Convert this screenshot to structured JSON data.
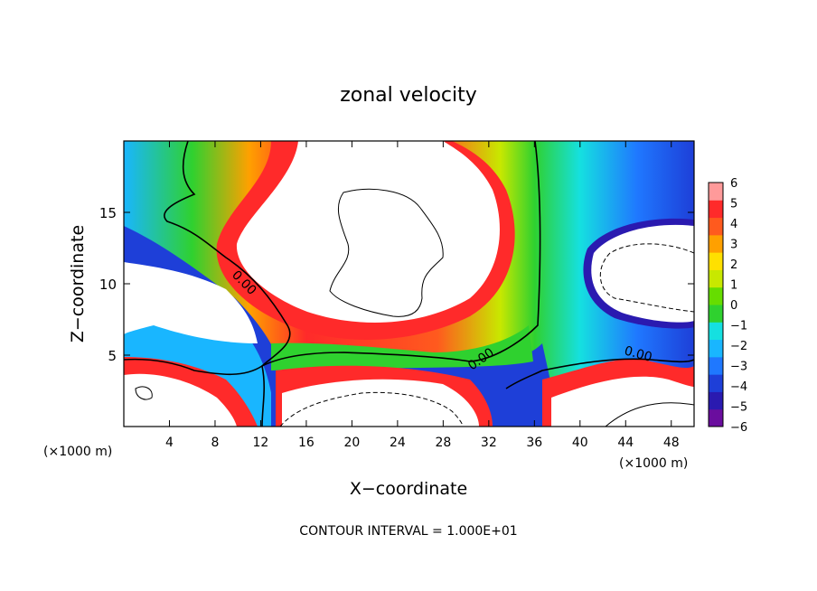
{
  "chart_data": {
    "type": "heatmap",
    "title": "zonal velocity",
    "xlabel": "X−coordinate",
    "ylabel": "Z−coordinate",
    "x_unit_left": "(×1000 m)",
    "x_unit_right": "(×1000 m)",
    "xlim": [
      0,
      50
    ],
    "ylim": [
      0,
      20
    ],
    "x_ticks": [
      4,
      8,
      12,
      16,
      20,
      24,
      28,
      32,
      36,
      40,
      44,
      48
    ],
    "y_ticks": [
      5,
      10,
      15
    ],
    "contour_label": "0.00",
    "footer": "CONTOUR INTERVAL = 1.000E+01",
    "colorbar": {
      "ticks": [
        "6",
        "5",
        "4",
        "3",
        "2",
        "1",
        "0",
        "−1",
        "−2",
        "−3",
        "−4",
        "−5",
        "−6"
      ],
      "range": [
        -6,
        6
      ],
      "colors": [
        "#6a0d9e",
        "#2a1ab0",
        "#1e3fd8",
        "#1f78ff",
        "#19b6ff",
        "#15e0e0",
        "#2fd12f",
        "#66dd00",
        "#c8e800",
        "#ffe000",
        "#ffa000",
        "#ff5a1e",
        "#ff2a2a",
        "#ff9a9a"
      ]
    },
    "clipped_regions": "white areas are values outside the color range"
  }
}
